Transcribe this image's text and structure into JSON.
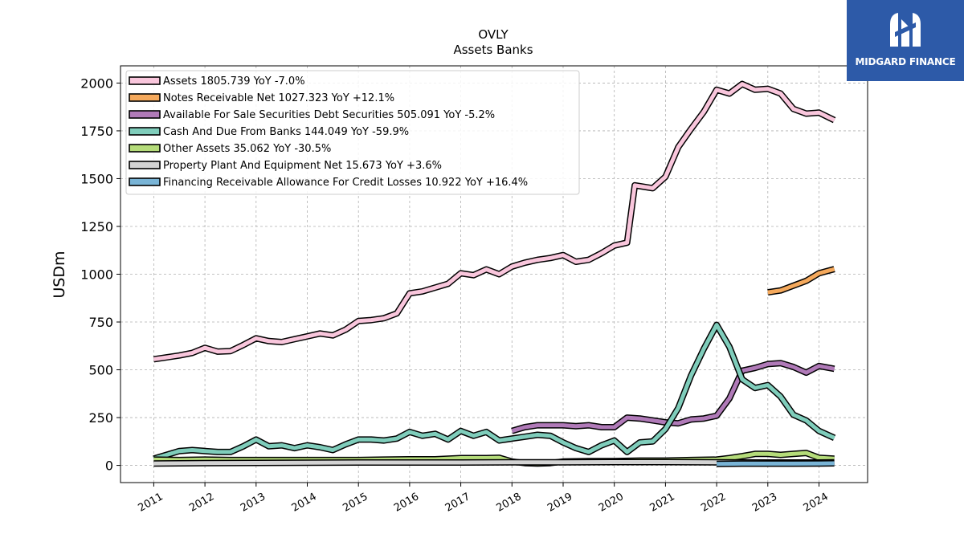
{
  "brand": {
    "name": "MIDGARD FINANCE",
    "color": "#2d5aa8",
    "icon": "midgard-logo-icon"
  },
  "chart_data": {
    "type": "line",
    "title": "OVLY",
    "subtitle": "Assets Banks",
    "ylabel": "USDm",
    "xlabel": "",
    "ylim": [
      -90,
      2090
    ],
    "xlim": [
      2010.35,
      2024.95
    ],
    "yticks": [
      0,
      250,
      500,
      750,
      1000,
      1250,
      1500,
      1750,
      2000
    ],
    "xticks": [
      "2011",
      "2012",
      "2013",
      "2014",
      "2015",
      "2016",
      "2017",
      "2018",
      "2019",
      "2020",
      "2021",
      "2022",
      "2023",
      "2024"
    ],
    "grid": true,
    "legend_position": "top-left",
    "series": [
      {
        "name": "Assets",
        "legend_label": "Assets  1805.739 YoY -7.0%",
        "color": "#f9c6dc",
        "points": [
          [
            2011.0,
            555
          ],
          [
            2011.25,
            565
          ],
          [
            2011.5,
            575
          ],
          [
            2011.75,
            588
          ],
          [
            2012.0,
            615
          ],
          [
            2012.25,
            595
          ],
          [
            2012.5,
            598
          ],
          [
            2012.75,
            630
          ],
          [
            2013.0,
            665
          ],
          [
            2013.25,
            650
          ],
          [
            2013.5,
            645
          ],
          [
            2013.75,
            660
          ],
          [
            2014.0,
            675
          ],
          [
            2014.25,
            690
          ],
          [
            2014.5,
            680
          ],
          [
            2014.75,
            710
          ],
          [
            2015.0,
            755
          ],
          [
            2015.25,
            760
          ],
          [
            2015.5,
            770
          ],
          [
            2015.75,
            795
          ],
          [
            2016.0,
            900
          ],
          [
            2016.25,
            910
          ],
          [
            2016.5,
            930
          ],
          [
            2016.75,
            950
          ],
          [
            2017.0,
            1005
          ],
          [
            2017.25,
            995
          ],
          [
            2017.5,
            1025
          ],
          [
            2017.75,
            1000
          ],
          [
            2018.0,
            1040
          ],
          [
            2018.25,
            1060
          ],
          [
            2018.5,
            1075
          ],
          [
            2018.75,
            1085
          ],
          [
            2019.0,
            1100
          ],
          [
            2019.25,
            1065
          ],
          [
            2019.5,
            1075
          ],
          [
            2019.75,
            1110
          ],
          [
            2020.0,
            1150
          ],
          [
            2020.25,
            1165
          ],
          [
            2020.4,
            1465
          ],
          [
            2020.75,
            1450
          ],
          [
            2021.0,
            1510
          ],
          [
            2021.25,
            1665
          ],
          [
            2021.5,
            1760
          ],
          [
            2021.75,
            1850
          ],
          [
            2022.0,
            1965
          ],
          [
            2022.25,
            1945
          ],
          [
            2022.5,
            1995
          ],
          [
            2022.75,
            1965
          ],
          [
            2023.0,
            1970
          ],
          [
            2023.25,
            1945
          ],
          [
            2023.5,
            1865
          ],
          [
            2023.75,
            1840
          ],
          [
            2024.0,
            1845
          ],
          [
            2024.3,
            1806
          ]
        ]
      },
      {
        "name": "Notes Receivable Net",
        "legend_label": "Notes Receivable Net  1027.323 YoY +12.1%",
        "color": "#f5a95c",
        "points": [
          [
            2023.0,
            905
          ],
          [
            2023.25,
            915
          ],
          [
            2023.5,
            940
          ],
          [
            2023.75,
            965
          ],
          [
            2024.0,
            1005
          ],
          [
            2024.3,
            1027
          ]
        ]
      },
      {
        "name": "Available For Sale Securities Debt Securities",
        "legend_label": "Available For Sale Securities Debt Securities  505.091 YoY -5.2%",
        "color": "#b07ab8",
        "points": [
          [
            2018.0,
            180
          ],
          [
            2018.25,
            200
          ],
          [
            2018.5,
            210
          ],
          [
            2018.75,
            210
          ],
          [
            2019.0,
            210
          ],
          [
            2019.25,
            205
          ],
          [
            2019.5,
            210
          ],
          [
            2019.75,
            200
          ],
          [
            2020.0,
            200
          ],
          [
            2020.25,
            250
          ],
          [
            2020.5,
            245
          ],
          [
            2020.75,
            235
          ],
          [
            2021.0,
            225
          ],
          [
            2021.25,
            220
          ],
          [
            2021.5,
            240
          ],
          [
            2021.75,
            245
          ],
          [
            2022.0,
            260
          ],
          [
            2022.25,
            350
          ],
          [
            2022.5,
            495
          ],
          [
            2022.75,
            510
          ],
          [
            2023.0,
            530
          ],
          [
            2023.25,
            535
          ],
          [
            2023.5,
            515
          ],
          [
            2023.75,
            485
          ],
          [
            2024.0,
            520
          ],
          [
            2024.3,
            505
          ]
        ]
      },
      {
        "name": "Cash And Due From Banks",
        "legend_label": "Cash And Due From Banks  144.049 YoY -59.9%",
        "color": "#7fcdbb",
        "points": [
          [
            2011.0,
            35
          ],
          [
            2011.25,
            55
          ],
          [
            2011.5,
            75
          ],
          [
            2011.75,
            80
          ],
          [
            2012.0,
            75
          ],
          [
            2012.25,
            70
          ],
          [
            2012.5,
            70
          ],
          [
            2012.75,
            100
          ],
          [
            2013.0,
            135
          ],
          [
            2013.25,
            100
          ],
          [
            2013.5,
            105
          ],
          [
            2013.75,
            90
          ],
          [
            2014.0,
            105
          ],
          [
            2014.25,
            95
          ],
          [
            2014.5,
            80
          ],
          [
            2014.75,
            110
          ],
          [
            2015.0,
            135
          ],
          [
            2015.25,
            135
          ],
          [
            2015.5,
            130
          ],
          [
            2015.75,
            140
          ],
          [
            2016.0,
            175
          ],
          [
            2016.25,
            155
          ],
          [
            2016.5,
            165
          ],
          [
            2016.75,
            135
          ],
          [
            2017.0,
            180
          ],
          [
            2017.25,
            155
          ],
          [
            2017.5,
            175
          ],
          [
            2017.75,
            130
          ],
          [
            2018.0,
            140
          ],
          [
            2018.25,
            150
          ],
          [
            2018.5,
            160
          ],
          [
            2018.75,
            155
          ],
          [
            2019.0,
            120
          ],
          [
            2019.25,
            90
          ],
          [
            2019.5,
            70
          ],
          [
            2019.75,
            105
          ],
          [
            2020.0,
            130
          ],
          [
            2020.25,
            70
          ],
          [
            2020.5,
            120
          ],
          [
            2020.75,
            125
          ],
          [
            2021.0,
            190
          ],
          [
            2021.25,
            300
          ],
          [
            2021.5,
            470
          ],
          [
            2021.75,
            610
          ],
          [
            2022.0,
            735
          ],
          [
            2022.25,
            620
          ],
          [
            2022.5,
            450
          ],
          [
            2022.75,
            405
          ],
          [
            2023.0,
            420
          ],
          [
            2023.25,
            360
          ],
          [
            2023.5,
            265
          ],
          [
            2023.75,
            235
          ],
          [
            2024.0,
            180
          ],
          [
            2024.3,
            144
          ]
        ]
      },
      {
        "name": "Other Assets",
        "legend_label": "Other Assets  35.062 YoY -30.5%",
        "color": "#b5dc7a",
        "points": [
          [
            2011.0,
            30
          ],
          [
            2011.5,
            28
          ],
          [
            2012.0,
            30
          ],
          [
            2012.5,
            28
          ],
          [
            2013.0,
            28
          ],
          [
            2013.5,
            28
          ],
          [
            2014.0,
            28
          ],
          [
            2014.5,
            28
          ],
          [
            2015.0,
            28
          ],
          [
            2015.5,
            30
          ],
          [
            2016.0,
            32
          ],
          [
            2016.5,
            32
          ],
          [
            2017.0,
            38
          ],
          [
            2017.5,
            38
          ],
          [
            2017.75,
            40
          ],
          [
            2018.0,
            20
          ],
          [
            2018.25,
            12
          ],
          [
            2018.5,
            10
          ],
          [
            2018.75,
            12
          ],
          [
            2019.0,
            20
          ],
          [
            2019.5,
            22
          ],
          [
            2020.0,
            22
          ],
          [
            2020.5,
            25
          ],
          [
            2021.0,
            25
          ],
          [
            2021.5,
            28
          ],
          [
            2022.0,
            30
          ],
          [
            2022.25,
            38
          ],
          [
            2022.5,
            48
          ],
          [
            2022.75,
            60
          ],
          [
            2023.0,
            60
          ],
          [
            2023.25,
            55
          ],
          [
            2023.5,
            60
          ],
          [
            2023.75,
            65
          ],
          [
            2024.0,
            40
          ],
          [
            2024.3,
            35
          ]
        ]
      },
      {
        "name": "Property Plant And Equipment Net",
        "legend_label": "Property Plant And Equipment Net  15.673 YoY +3.6%",
        "color": "#d3d3d3",
        "points": [
          [
            2011.0,
            10
          ],
          [
            2012.0,
            12
          ],
          [
            2013.0,
            13
          ],
          [
            2014.0,
            14
          ],
          [
            2015.0,
            15
          ],
          [
            2016.0,
            15
          ],
          [
            2017.0,
            15
          ],
          [
            2018.0,
            16
          ],
          [
            2019.0,
            16
          ],
          [
            2020.0,
            17
          ],
          [
            2021.0,
            17
          ],
          [
            2022.0,
            16
          ],
          [
            2023.0,
            15
          ],
          [
            2024.0,
            15
          ],
          [
            2024.3,
            15.7
          ]
        ]
      },
      {
        "name": "Financing Receivable Allowance For Credit Losses",
        "legend_label": "Financing Receivable Allowance For Credit Losses  10.922 YoY +16.4%",
        "color": "#79b4d6",
        "points": [
          [
            2022.0,
            8
          ],
          [
            2022.5,
            9
          ],
          [
            2023.0,
            9
          ],
          [
            2023.5,
            9
          ],
          [
            2024.0,
            10
          ],
          [
            2024.3,
            10.9
          ]
        ]
      }
    ]
  }
}
